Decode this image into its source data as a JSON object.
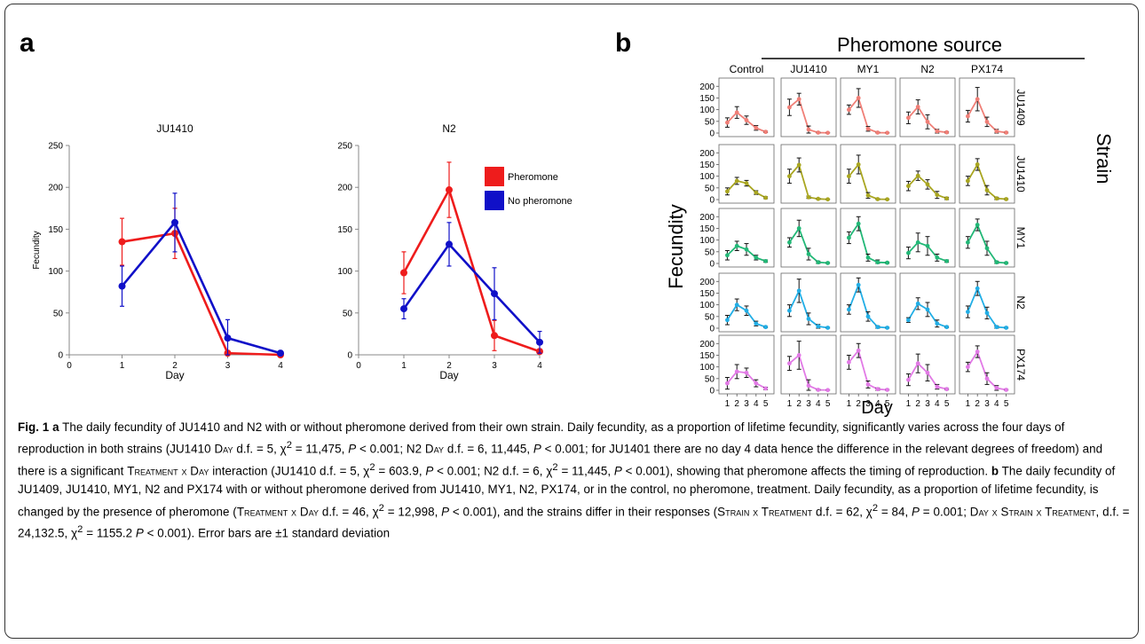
{
  "figure": {
    "panel_a_label": "a",
    "panel_b_label": "b",
    "pheromone_source_title": "Pheromone source",
    "strain_axis_title": "Strain",
    "fecundity_label_b": "Fecundity",
    "day_label_b": "Day"
  },
  "colors": {
    "pheromone": "#ee1c1c",
    "no_pheromone": "#1010c8",
    "JU1409": "#f07f77",
    "JU1410": "#a9a620",
    "MY1": "#22b877",
    "N2": "#21aee6",
    "PX174": "#e27ae6"
  },
  "chart_data": [
    {
      "type": "line",
      "panel": "a",
      "title": "JU1410",
      "xlabel": "Day",
      "ylabel": "Fecundity",
      "xlim": [
        0,
        4
      ],
      "ylim": [
        0,
        250
      ],
      "xticks": [
        "0",
        "1",
        "2",
        "3",
        "4"
      ],
      "yticks": [
        "0",
        "50",
        "100",
        "150",
        "200",
        "250"
      ],
      "series": [
        {
          "name": "Pheromone",
          "x": [
            1,
            2,
            3,
            4
          ],
          "values": [
            135,
            145,
            2,
            0
          ],
          "err": [
            28,
            30,
            3,
            1
          ]
        },
        {
          "name": "No pheromone",
          "x": [
            1,
            2,
            3,
            4
          ],
          "values": [
            82,
            158,
            20,
            2
          ],
          "err": [
            24,
            35,
            22,
            2
          ]
        }
      ]
    },
    {
      "type": "line",
      "panel": "a",
      "title": "N2",
      "xlabel": "Day",
      "ylabel": "",
      "xlim": [
        0,
        4
      ],
      "ylim": [
        0,
        250
      ],
      "xticks": [
        "0",
        "1",
        "2",
        "3",
        "4"
      ],
      "yticks": [
        "0",
        "50",
        "100",
        "150",
        "200",
        "250"
      ],
      "legend_position": "top-right",
      "series": [
        {
          "name": "Pheromone",
          "x": [
            1,
            2,
            3,
            4
          ],
          "values": [
            98,
            197,
            23,
            4
          ],
          "err": [
            25,
            33,
            18,
            3
          ]
        },
        {
          "name": "No pheromone",
          "x": [
            1,
            2,
            3,
            4
          ],
          "values": [
            55,
            132,
            73,
            15
          ],
          "err": [
            12,
            26,
            31,
            13
          ]
        }
      ]
    },
    {
      "type": "line",
      "panel": "b",
      "facet_rows": [
        "JU1409",
        "JU1410",
        "MY1",
        "N2",
        "PX174"
      ],
      "facet_cols": [
        "Control",
        "JU1410",
        "MY1",
        "N2",
        "PX174"
      ],
      "xticks": [
        "1",
        "2",
        "3",
        "4",
        "5"
      ],
      "yticks": [
        "0",
        "50",
        "100",
        "150",
        "200"
      ],
      "ylim": [
        0,
        220
      ],
      "xlim": [
        0.5,
        5.5
      ],
      "cells": {
        "JU1409": [
          {
            "values": [
              45,
              88,
              55,
              22,
              5
            ],
            "err": [
              20,
              25,
              18,
              10,
              3
            ]
          },
          {
            "values": [
              110,
              145,
              15,
              2,
              1
            ],
            "err": [
              35,
              25,
              15,
              2,
              1
            ]
          },
          {
            "values": [
              100,
              150,
              18,
              2,
              1
            ],
            "err": [
              20,
              40,
              10,
              2,
              1
            ]
          },
          {
            "values": [
              65,
              112,
              48,
              8,
              3
            ],
            "err": [
              25,
              30,
              30,
              8,
              3
            ]
          },
          {
            "values": [
              72,
              145,
              48,
              8,
              2
            ],
            "err": [
              25,
              50,
              20,
              8,
              2
            ]
          }
        ],
        "JU1410": [
          {
            "values": [
              35,
              80,
              70,
              30,
              8
            ],
            "err": [
              15,
              15,
              12,
              8,
              4
            ]
          },
          {
            "values": [
              100,
              148,
              10,
              3,
              1
            ],
            "err": [
              30,
              30,
              5,
              2,
              1
            ]
          },
          {
            "values": [
              100,
              150,
              18,
              2,
              1
            ],
            "err": [
              30,
              40,
              12,
              2,
              1
            ]
          },
          {
            "values": [
              58,
              102,
              65,
              20,
              5
            ],
            "err": [
              20,
              20,
              20,
              15,
              5
            ]
          },
          {
            "values": [
              80,
              150,
              40,
              5,
              2
            ],
            "err": [
              20,
              25,
              20,
              5,
              2
            ]
          }
        ],
        "MY1": [
          {
            "values": [
              35,
              75,
              60,
              25,
              10
            ],
            "err": [
              20,
              20,
              25,
              10,
              5
            ]
          },
          {
            "values": [
              90,
              150,
              40,
              5,
              2
            ],
            "err": [
              20,
              35,
              25,
              5,
              2
            ]
          },
          {
            "values": [
              110,
              170,
              25,
              5,
              3
            ],
            "err": [
              25,
              30,
              15,
              10,
              3
            ]
          },
          {
            "values": [
              45,
              90,
              75,
              25,
              10
            ],
            "err": [
              25,
              40,
              40,
              15,
              5
            ]
          },
          {
            "values": [
              90,
              165,
              65,
              5,
              2
            ],
            "err": [
              25,
              25,
              30,
              5,
              2
            ]
          }
        ],
        "N2": [
          {
            "values": [
              35,
              100,
              75,
              20,
              5
            ],
            "err": [
              20,
              25,
              20,
              10,
              3
            ]
          },
          {
            "values": [
              75,
              160,
              40,
              8,
              2
            ],
            "err": [
              25,
              50,
              25,
              8,
              2
            ]
          },
          {
            "values": [
              80,
              185,
              50,
              5,
              2
            ],
            "err": [
              20,
              30,
              20,
              5,
              2
            ]
          },
          {
            "values": [
              35,
              105,
              80,
              20,
              5
            ],
            "err": [
              10,
              25,
              30,
              15,
              3
            ]
          },
          {
            "values": [
              70,
              170,
              65,
              5,
              2
            ],
            "err": [
              25,
              30,
              25,
              5,
              2
            ]
          }
        ],
        "PX174": [
          {
            "values": [
              30,
              80,
              75,
              30,
              8
            ],
            "err": [
              25,
              30,
              20,
              15,
              5
            ]
          },
          {
            "values": [
              115,
              150,
              20,
              2,
              1
            ],
            "err": [
              30,
              60,
              25,
              2,
              1
            ]
          },
          {
            "values": [
              120,
              170,
              25,
              5,
              2
            ],
            "err": [
              30,
              30,
              15,
              5,
              2
            ]
          },
          {
            "values": [
              45,
              115,
              75,
              15,
              5
            ],
            "err": [
              25,
              40,
              35,
              10,
              3
            ]
          },
          {
            "values": [
              100,
              165,
              50,
              10,
              2
            ],
            "err": [
              20,
              25,
              25,
              10,
              2
            ]
          }
        ]
      }
    }
  ],
  "caption": {
    "fig_label": "Fig. 1",
    "a_label": "a",
    "a_text_1": "The daily fecundity of JU1410 and N2 with or without pheromone derived from their own strain. Daily fecundity, as a proportion of lifetime fecundity, significantly varies across the four days of reproduction in both strains (JU1410 ",
    "day_sc_1": "Day",
    "a_text_2": " d.f. = 5, χ",
    "sup2": "2",
    "a_text_3": " = 11,475, ",
    "p_italic": "P",
    "a_text_4": " < 0.001; N2 ",
    "day_sc_2": "Day",
    "a_text_5": " d.f. = 6, 11,445, ",
    "a_text_6": " < 0.001; for JU1401 there are no day 4 data hence the difference in the relevant degrees of freedom) and there is a significant ",
    "treatment_day_sc": "Treatment x Day",
    "a_text_7": " interaction (JU1410 d.f. = 5, χ",
    "a_text_8": " = 603.9, ",
    "a_text_9": " < 0.001; N2 d.f. = 6, χ",
    "a_text_10": " = 11,445, ",
    "a_text_11": " < 0.001), showing that pheromone affects the timing of reproduction. ",
    "b_label": "b",
    "b_text_1": " The daily fecundity of JU1409, JU1410, MY1, N2 and PX174 with or without pheromone derived from JU1410, MY1, N2, PX174, or in the control, no pheromone, treatment. Daily fecundity, as a proportion of lifetime fecundity, is changed by the presence of pheromone (",
    "treatment_day_sc_2": "Treatment x Day",
    "b_text_2": " d.f. = 46, χ",
    "b_text_3": " = 12,998, ",
    "b_text_4": " < 0.001), and the strains differ in their responses (",
    "strain_treatment_sc": "Strain x Treatment",
    "b_text_5": " d.f. = 62, χ",
    "b_text_6": " = 84, ",
    "b_text_7": " = 0.001; ",
    "day_strain_treatment_sc": "Day x Strain x Treatment",
    "b_text_8": ", d.f. = 24,132.5, χ",
    "b_text_9": " = 1155.2 ",
    "b_text_10": " < 0.001). Error bars are ±1 standard deviation"
  }
}
